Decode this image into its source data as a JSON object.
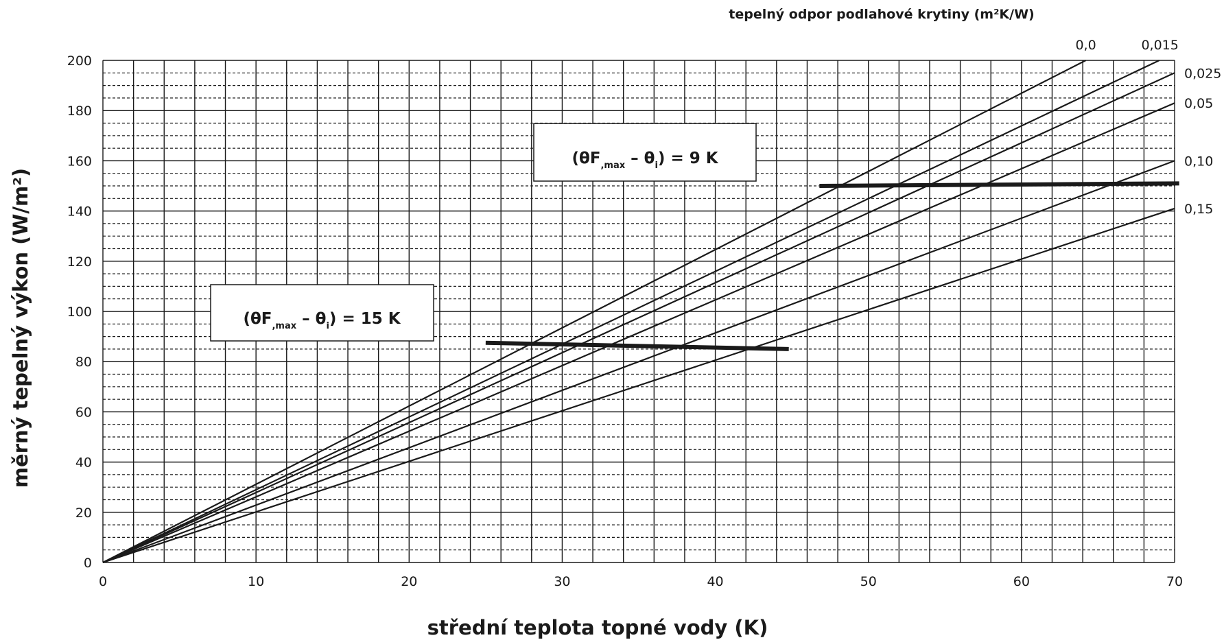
{
  "chart_data": {
    "type": "line",
    "xlabel": "střední teplota topné vody  (K)",
    "ylabel": "měrný tepelný výkon (W/m²)",
    "legend_title": "tepelný odpor podlahové krytiny (m²K/W)",
    "xlim": [
      0,
      70
    ],
    "ylim": [
      0,
      200
    ],
    "x_ticks": [
      0,
      10,
      20,
      30,
      40,
      50,
      60,
      70
    ],
    "y_ticks": [
      0,
      20,
      40,
      60,
      80,
      100,
      120,
      140,
      160,
      180,
      200
    ],
    "grid": {
      "x_major_every": 2,
      "y_major_every": 20,
      "y_minor_every": 5,
      "y_minor_style": "dashed"
    },
    "series": [
      {
        "name": "0,0",
        "x": [
          0,
          64.2
        ],
        "y": [
          0,
          200
        ]
      },
      {
        "name": "0,015",
        "x": [
          0,
          69.0
        ],
        "y": [
          0,
          200
        ]
      },
      {
        "name": "0,025",
        "x": [
          0,
          70
        ],
        "y": [
          0,
          195
        ]
      },
      {
        "name": "0,05",
        "x": [
          0,
          70
        ],
        "y": [
          0,
          183
        ]
      },
      {
        "name": "0,10",
        "x": [
          0,
          70
        ],
        "y": [
          0,
          160
        ]
      },
      {
        "name": "0,15",
        "x": [
          0,
          70
        ],
        "y": [
          0,
          141
        ]
      }
    ],
    "limit_curves": [
      {
        "label": "15 K",
        "x": [
          25,
          44.8
        ],
        "y": [
          87.5,
          85
        ]
      },
      {
        "label": "9 K",
        "x": [
          46.8,
          70.3
        ],
        "y": [
          150,
          151
        ]
      }
    ],
    "annotations": [
      {
        "pre": "(θF",
        "sub1": ",max",
        "mid": " – θ",
        "sub2": "i",
        "post": ") =  9 K"
      },
      {
        "pre": "(θF",
        "sub1": ",max",
        "mid": " – θ",
        "sub2": "i",
        "post": ") = 15 K"
      }
    ]
  }
}
